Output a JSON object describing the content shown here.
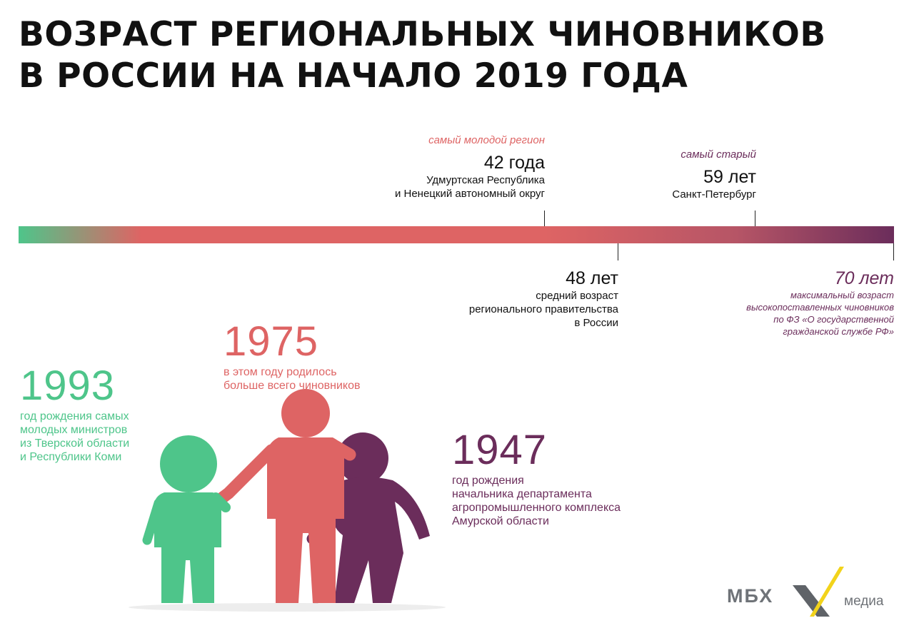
{
  "title": {
    "line1": "ВОЗРАСТ РЕГИОНАЛЬНЫХ ЧИНОВНИКОВ",
    "line2": "В РОССИИ НА НАЧАЛО 2019 ГОДА"
  },
  "timeline": {
    "youngest": {
      "note": "самый молодой регион",
      "value": "42 года",
      "line1": "Удмуртская Республика",
      "line2": "и Ненецкий автономный округ"
    },
    "oldest": {
      "note": "самый старый",
      "value": "59 лет",
      "line1": "Санкт-Петербург"
    },
    "average": {
      "value": "48 лет",
      "line1": "средний возраст",
      "line2": "регионального правительства",
      "line3": "в России"
    },
    "maximum": {
      "value": "70 лет",
      "line1": "максимальный возраст",
      "line2": "высокопоставленных чиновников",
      "line3": "по ФЗ «О государственной",
      "line4": "гражданской службе РФ»"
    }
  },
  "years": {
    "y1993": {
      "year": "1993",
      "line1": "год рождения самых",
      "line2": "молодых министров",
      "line3": "из Тверской области",
      "line4": "и Республики Коми"
    },
    "y1975": {
      "year": "1975",
      "line1": "в этом году родилось",
      "line2": "больше всего чиновников"
    },
    "y1947": {
      "year": "1947",
      "line1": "год рождения",
      "line2": "начальника департамента",
      "line3": "агропромышленного комплекса",
      "line4": "Амурской области"
    }
  },
  "logo": {
    "left": "МБХ",
    "right": "медиа"
  },
  "colors": {
    "green": "#4ec58a",
    "red": "#de6464",
    "purple": "#6b2d5b",
    "logo_yellow": "#f2d31b"
  },
  "icons": [
    "child-figure-icon",
    "adult-figure-icon",
    "elder-figure-icon",
    "cane-icon",
    "mbx-x-icon"
  ]
}
